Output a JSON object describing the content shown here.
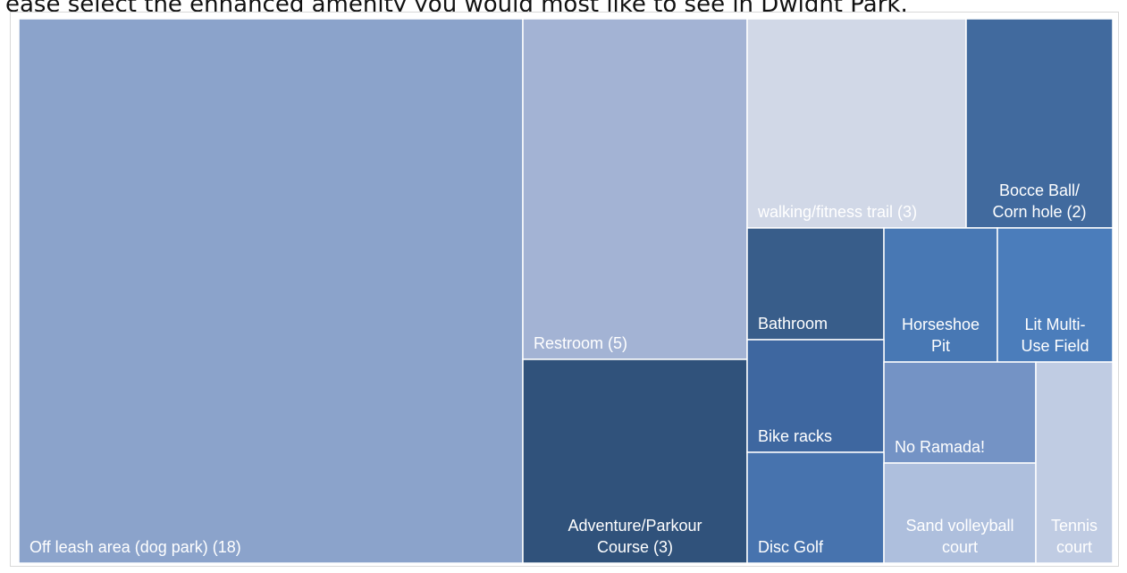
{
  "question_text": "ease select the enhanced amenity you would most like to see in Dwight Park.",
  "chart_data": {
    "type": "treemap",
    "title": "",
    "cells": [
      {
        "key": "dog-park",
        "label_lines": [
          "Off leash area (dog park) (18)"
        ],
        "value": 18,
        "color": "#8ba3cb",
        "anchor": "start-bottom"
      },
      {
        "key": "restroom",
        "label_lines": [
          "Restroom (5)"
        ],
        "value": 5,
        "color": "#a3b3d4",
        "anchor": "start-bottom"
      },
      {
        "key": "adventure-parkour",
        "label_lines": [
          "Adventure/Parkour",
          "Course (3)"
        ],
        "value": 3,
        "color": "#30527b",
        "anchor": "middle-bottom"
      },
      {
        "key": "walking-trail",
        "label_lines": [
          "walking/fitness trail (3)"
        ],
        "value": 3,
        "color": "#d1d8e7",
        "anchor": "start-bottom"
      },
      {
        "key": "bocce",
        "label_lines": [
          "Bocce Ball/",
          "Corn hole (2)"
        ],
        "value": 2,
        "color": "#416a9e",
        "anchor": "middle-bottom"
      },
      {
        "key": "bathroom",
        "label_lines": [
          "Bathroom"
        ],
        "value": 1,
        "color": "#385d8a",
        "anchor": "start-bottom"
      },
      {
        "key": "horseshoe",
        "label_lines": [
          "Horseshoe",
          "Pit"
        ],
        "value": 1,
        "color": "#4878b4",
        "anchor": "middle-bottom"
      },
      {
        "key": "lit-field",
        "label_lines": [
          "Lit Multi-",
          "Use Field"
        ],
        "value": 1,
        "color": "#4b7dbb",
        "anchor": "middle-bottom"
      },
      {
        "key": "bike-racks",
        "label_lines": [
          "Bike racks"
        ],
        "value": 1,
        "color": "#3e67a0",
        "anchor": "start-bottom"
      },
      {
        "key": "no-ramada",
        "label_lines": [
          "No Ramada!"
        ],
        "value": 1,
        "color": "#7493c5",
        "anchor": "start-bottom"
      },
      {
        "key": "disc-golf",
        "label_lines": [
          "Disc Golf"
        ],
        "value": 1,
        "color": "#4773ae",
        "anchor": "start-bottom"
      },
      {
        "key": "sand-volleyball",
        "label_lines": [
          "Sand volleyball",
          "court"
        ],
        "value": 1,
        "color": "#aebfdd",
        "anchor": "middle-bottom"
      },
      {
        "key": "tennis",
        "label_lines": [
          "Tennis",
          "court"
        ],
        "value": 1,
        "color": "#c0cce3",
        "anchor": "middle-bottom"
      }
    ]
  }
}
